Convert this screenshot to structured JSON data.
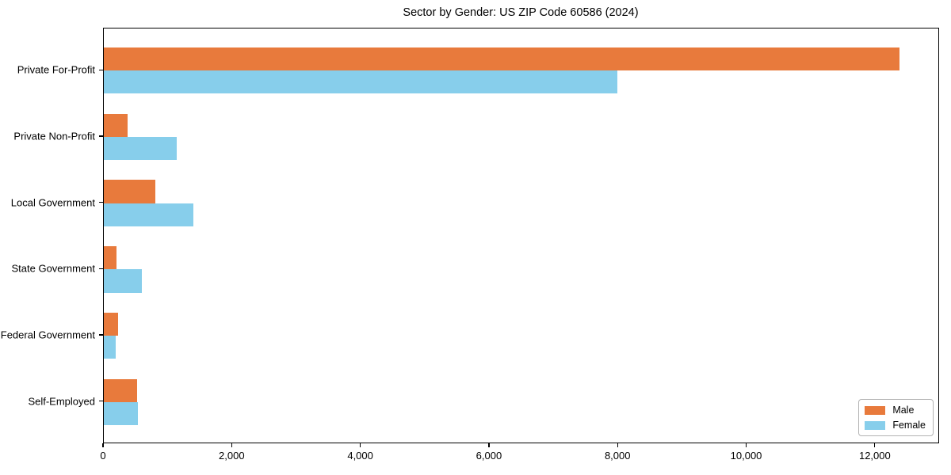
{
  "chart_data": {
    "type": "bar",
    "orientation": "horizontal",
    "title": "Sector by Gender: US ZIP Code 60586 (2024)",
    "categories": [
      "Private For-Profit",
      "Private Non-Profit",
      "Local Government",
      "State Government",
      "Federal Government",
      "Self-Employed"
    ],
    "series": [
      {
        "name": "Male",
        "color": "#e87a3c",
        "values": [
          12370,
          370,
          800,
          200,
          220,
          520
        ]
      },
      {
        "name": "Female",
        "color": "#87ceeb",
        "values": [
          7980,
          1130,
          1390,
          590,
          185,
          530
        ]
      }
    ],
    "xlim": [
      0,
      13000
    ],
    "xticks": [
      0,
      2000,
      4000,
      6000,
      8000,
      10000,
      12000
    ],
    "xtick_labels": [
      "0",
      "2,000",
      "4,000",
      "6,000",
      "8,000",
      "10,000",
      "12,000"
    ],
    "ylabel": "",
    "xlabel": "",
    "grid": false,
    "legend_position": "lower right",
    "bar_height_units": 0.35,
    "background_color": "#ffffff",
    "spine_color": "#000000"
  }
}
